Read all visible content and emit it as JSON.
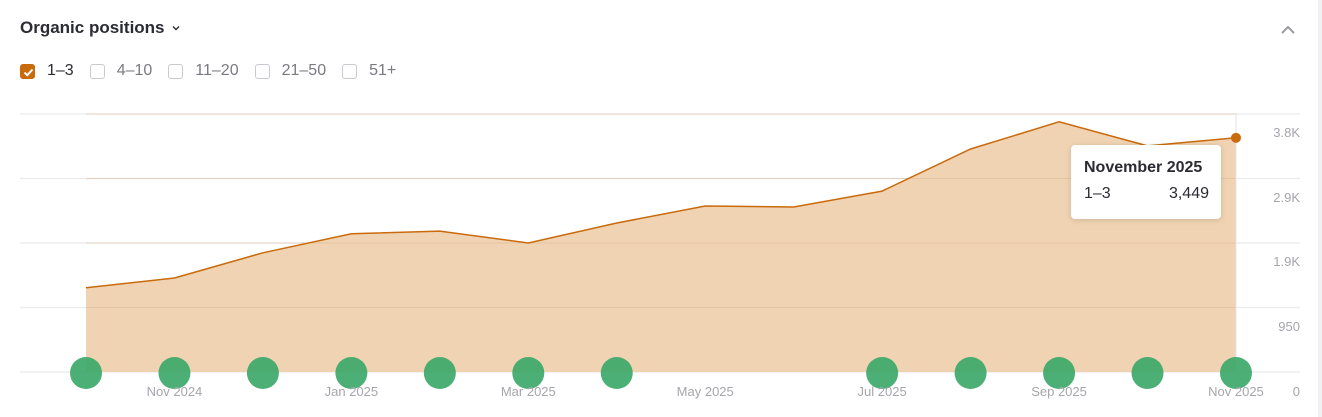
{
  "header": {
    "title": "Organic positions",
    "dropdown_icon": "chevron-down-icon",
    "collapse_icon": "chevron-up-icon"
  },
  "filters": [
    {
      "label": "1–3",
      "checked": true
    },
    {
      "label": "4–10",
      "checked": false
    },
    {
      "label": "11–20",
      "checked": false
    },
    {
      "label": "21–50",
      "checked": false
    },
    {
      "label": "51+",
      "checked": false
    }
  ],
  "colors": {
    "accent": "#c96a0b",
    "area_fill": "#efd1ae",
    "marker": "#3da86a",
    "grid": "#ebebed",
    "axis_text": "#a5a5ab"
  },
  "tooltip": {
    "title": "November 2025",
    "series_label": "1–3",
    "value": "3,449"
  },
  "chart_data": {
    "type": "area",
    "title": "Organic positions",
    "xlabel": "",
    "ylabel": "",
    "x": [
      "Oct 2024",
      "Nov 2024",
      "Dec 2024",
      "Jan 2025",
      "Feb 2025",
      "Mar 2025",
      "Apr 2025",
      "May 2025",
      "Jun 2025",
      "Jul 2025",
      "Aug 2025",
      "Sep 2025",
      "Oct 2025",
      "Nov 2025"
    ],
    "series": [
      {
        "name": "1–3",
        "values": [
          1240,
          1385,
          1755,
          2035,
          2075,
          1900,
          2195,
          2445,
          2430,
          2665,
          3285,
          3685,
          3330,
          3449
        ]
      }
    ],
    "x_tick_labels": [
      "Nov 2024",
      "Jan 2025",
      "Mar 2025",
      "May 2025",
      "Jul 2025",
      "Sep 2025",
      "Nov 2025"
    ],
    "y_tick_labels": [
      "0",
      "950",
      "1.9K",
      "2.9K",
      "3.8K"
    ],
    "y_ticks": [
      0,
      950,
      1900,
      2850,
      3800
    ],
    "ylim": [
      0,
      3800
    ],
    "y_axis_position": "right",
    "grid": true,
    "legend": "checkbox filters above chart",
    "annotations": {
      "markers_at": [
        "Oct 2024",
        "Nov 2024",
        "Dec 2024",
        "Jan 2025",
        "Feb 2025",
        "Mar 2025",
        "Apr 2025",
        "Jul 2025",
        "Aug 2025",
        "Sep 2025",
        "Oct 2025",
        "Nov 2025"
      ],
      "marker_type": "green circle event markers on x-axis",
      "highlighted_point": {
        "x": "Nov 2025",
        "value": 3449
      }
    }
  }
}
